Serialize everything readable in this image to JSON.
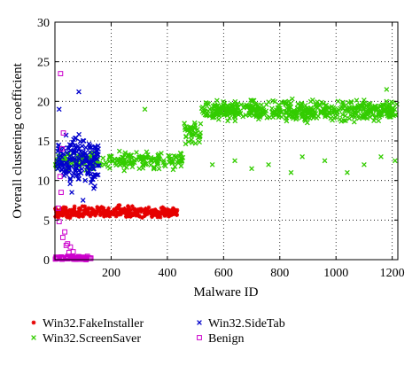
{
  "chart_data": {
    "type": "scatter",
    "title": "",
    "xlabel": "Malware ID",
    "ylabel": "Overall clustering coefficient",
    "xlim": [
      0,
      1220
    ],
    "ylim": [
      0,
      30
    ],
    "xticks": [
      200,
      400,
      600,
      800,
      1000,
      1200
    ],
    "yticks": [
      0,
      5,
      10,
      15,
      20,
      25,
      30
    ],
    "grid": true,
    "legend_placement": "bottom, two columns",
    "series": [
      {
        "name": "Win32.FakeInstaller",
        "color": "#e60000",
        "marker": "star",
        "x_range": [
          1,
          435
        ],
        "typical_y": 6.0,
        "y_spread": [
          5.0,
          7.0
        ],
        "points": [
          [
            10,
            6.2
          ],
          [
            60,
            5.8
          ],
          [
            120,
            6.5
          ],
          [
            180,
            6.0
          ],
          [
            240,
            5.9
          ],
          [
            300,
            6.3
          ],
          [
            360,
            5.7
          ],
          [
            430,
            6.1
          ]
        ]
      },
      {
        "name": "Win32.ScreenSaver",
        "color": "#33cc00",
        "marker": "x",
        "segments": [
          {
            "x_range": [
              1,
              460
            ],
            "typical_y": 12.5,
            "y_spread": [
              11,
              14
            ]
          },
          {
            "x_range": [
              460,
              520
            ],
            "typical_y": 16,
            "y_spread": [
              13.5,
              18
            ]
          },
          {
            "x_range": [
              520,
              1220
            ],
            "typical_y": 18.8,
            "y_spread": [
              17,
              20.5
            ]
          }
        ],
        "outliers": [
          [
            320,
            19.0
          ],
          [
            250,
            13.5
          ],
          [
            560,
            12.0
          ],
          [
            640,
            12.5
          ],
          [
            700,
            11.5
          ],
          [
            760,
            12.0
          ],
          [
            840,
            11.0
          ],
          [
            880,
            13.0
          ],
          [
            960,
            12.5
          ],
          [
            1040,
            11.0
          ],
          [
            1100,
            12.0
          ],
          [
            1160,
            13.0
          ],
          [
            1210,
            12.5
          ],
          [
            1180,
            21.5
          ]
        ]
      },
      {
        "name": "Win32.SideTab",
        "color": "#0000cc",
        "marker": "x",
        "x_range": [
          5,
          160
        ],
        "typical_y": 12.5,
        "y_spread": [
          8,
          17
        ],
        "outliers": [
          [
            85,
            21.2
          ],
          [
            15,
            19.0
          ],
          [
            100,
            7.5
          ],
          [
            60,
            8.5
          ]
        ]
      },
      {
        "name": "Benign",
        "color": "#cc00cc",
        "marker": "square",
        "x_range": [
          1,
          130
        ],
        "typical_y": 0.2,
        "y_spread": [
          0,
          0.6
        ],
        "outliers": [
          [
            20,
            23.5
          ],
          [
            30,
            16.0
          ],
          [
            25,
            14.0
          ],
          [
            18,
            10.5
          ],
          [
            22,
            8.5
          ],
          [
            15,
            4.8
          ],
          [
            35,
            3.5
          ],
          [
            45,
            2.0
          ],
          [
            55,
            1.6
          ],
          [
            65,
            1.0
          ],
          [
            40,
            1.8
          ],
          [
            28,
            2.8
          ],
          [
            12,
            6.5
          ],
          [
            50,
            0.9
          ]
        ]
      }
    ]
  }
}
